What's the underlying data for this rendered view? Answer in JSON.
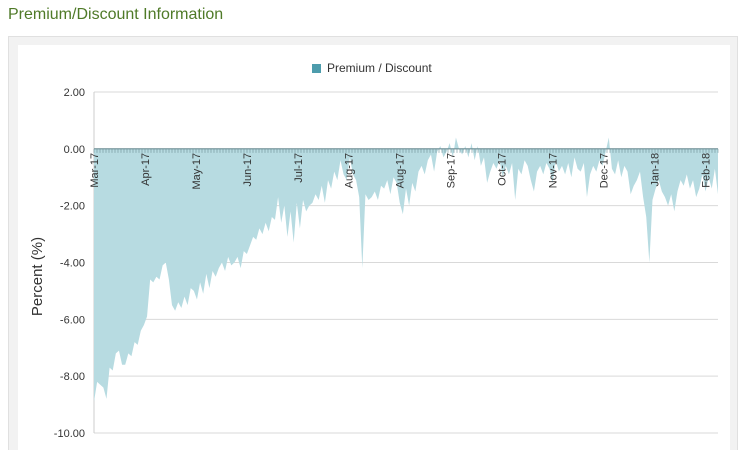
{
  "page": {
    "title": "Premium/Discount Information"
  },
  "colors": {
    "title": "#4f7a28",
    "area_fill": "#b7dbe1",
    "legend_swatch": "#4d9cac",
    "grid": "#d9d9d9",
    "zero_line": "#6e8f96"
  },
  "chart_data": {
    "type": "area",
    "title": "",
    "xlabel": "",
    "ylabel": "Percent (%)",
    "ylim": [
      -10,
      2
    ],
    "yticks": [
      "2.00",
      "0.00",
      "-2.00",
      "-4.00",
      "-6.00",
      "-8.00",
      "-10.00"
    ],
    "xticks": [
      "Mar-17",
      "Apr-17",
      "May-17",
      "Jun-17",
      "Jul-17",
      "Aug-17",
      "Aug-17",
      "Sep-17",
      "Oct-17",
      "Nov-17",
      "Dec-17",
      "Jan-18",
      "Feb-18"
    ],
    "grid": true,
    "legend_position": "top-center",
    "series": [
      {
        "name": "Premium / Discount",
        "points": [
          [
            0,
            -8.9
          ],
          [
            1,
            -8.2
          ],
          [
            2,
            -8.3
          ],
          [
            3,
            -8.4
          ],
          [
            4,
            -8.8
          ],
          [
            5,
            -7.7
          ],
          [
            6,
            -7.8
          ],
          [
            7,
            -7.2
          ],
          [
            8,
            -7.1
          ],
          [
            9,
            -7.6
          ],
          [
            10,
            -7.6
          ],
          [
            11,
            -7.2
          ],
          [
            12,
            -7.3
          ],
          [
            13,
            -6.8
          ],
          [
            14,
            -6.9
          ],
          [
            15,
            -6.4
          ],
          [
            16,
            -6.2
          ],
          [
            17,
            -5.9
          ],
          [
            18,
            -4.6
          ],
          [
            19,
            -4.7
          ],
          [
            20,
            -4.5
          ],
          [
            21,
            -4.6
          ],
          [
            22,
            -4.1
          ],
          [
            23,
            -4.0
          ],
          [
            24,
            -4.6
          ],
          [
            25,
            -5.5
          ],
          [
            26,
            -5.7
          ],
          [
            27,
            -5.4
          ],
          [
            28,
            -5.6
          ],
          [
            29,
            -5.2
          ],
          [
            30,
            -5.5
          ],
          [
            31,
            -4.9
          ],
          [
            32,
            -5.0
          ],
          [
            33,
            -5.3
          ],
          [
            34,
            -4.7
          ],
          [
            35,
            -5.1
          ],
          [
            36,
            -4.4
          ],
          [
            37,
            -4.9
          ],
          [
            38,
            -4.3
          ],
          [
            39,
            -4.5
          ],
          [
            40,
            -4.2
          ],
          [
            41,
            -4.0
          ],
          [
            42,
            -4.3
          ],
          [
            43,
            -3.8
          ],
          [
            44,
            -4.1
          ],
          [
            45,
            -4.0
          ],
          [
            46,
            -3.8
          ],
          [
            47,
            -4.2
          ],
          [
            48,
            -3.6
          ],
          [
            49,
            -3.7
          ],
          [
            50,
            -3.4
          ],
          [
            51,
            -3.1
          ],
          [
            52,
            -3.2
          ],
          [
            53,
            -2.8
          ],
          [
            54,
            -3.0
          ],
          [
            55,
            -2.6
          ],
          [
            56,
            -2.9
          ],
          [
            57,
            -2.4
          ],
          [
            58,
            -2.5
          ],
          [
            59,
            -1.7
          ],
          [
            60,
            -2.6
          ],
          [
            61,
            -2.0
          ],
          [
            62,
            -3.1
          ],
          [
            63,
            -2.2
          ],
          [
            64,
            -3.3
          ],
          [
            65,
            -1.9
          ],
          [
            66,
            -2.8
          ],
          [
            67,
            -1.8
          ],
          [
            68,
            -2.2
          ],
          [
            69,
            -2.0
          ],
          [
            70,
            -1.9
          ],
          [
            71,
            -1.6
          ],
          [
            72,
            -1.8
          ],
          [
            73,
            -1.3
          ],
          [
            74,
            -1.9
          ],
          [
            75,
            -1.1
          ],
          [
            76,
            -1.4
          ],
          [
            77,
            -0.8
          ],
          [
            78,
            -1.1
          ],
          [
            79,
            -0.4
          ],
          [
            80,
            -0.9
          ],
          [
            81,
            -1.1
          ],
          [
            82,
            -0.3
          ],
          [
            83,
            -0.9
          ],
          [
            84,
            -1.1
          ],
          [
            85,
            -1.7
          ],
          [
            86,
            -4.2
          ],
          [
            87,
            -1.6
          ],
          [
            88,
            -1.8
          ],
          [
            89,
            -1.7
          ],
          [
            90,
            -1.5
          ],
          [
            91,
            -1.8
          ],
          [
            92,
            -1.3
          ],
          [
            93,
            -1.4
          ],
          [
            94,
            -1.1
          ],
          [
            95,
            -1.6
          ],
          [
            96,
            -1.0
          ],
          [
            97,
            -1.2
          ],
          [
            98,
            -1.9
          ],
          [
            99,
            -2.3
          ],
          [
            100,
            -1.4
          ],
          [
            101,
            -2.0
          ],
          [
            102,
            -1.2
          ],
          [
            103,
            -1.5
          ],
          [
            104,
            -0.8
          ],
          [
            105,
            -0.6
          ],
          [
            106,
            -0.9
          ],
          [
            107,
            -0.4
          ],
          [
            108,
            -0.2
          ],
          [
            109,
            -0.8
          ],
          [
            110,
            -0.1
          ],
          [
            111,
            0.1
          ],
          [
            112,
            -0.3
          ],
          [
            113,
            -0.1
          ],
          [
            114,
            0.2
          ],
          [
            115,
            -0.3
          ],
          [
            116,
            0.4
          ],
          [
            117,
            0.0
          ],
          [
            118,
            -0.2
          ],
          [
            119,
            0.1
          ],
          [
            120,
            -0.3
          ],
          [
            121,
            0.2
          ],
          [
            122,
            -0.4
          ],
          [
            123,
            0.1
          ],
          [
            124,
            -0.6
          ],
          [
            125,
            -0.3
          ],
          [
            126,
            -1.2
          ],
          [
            127,
            -0.8
          ],
          [
            128,
            -0.5
          ],
          [
            129,
            -0.7
          ],
          [
            130,
            -0.4
          ],
          [
            131,
            -1.0
          ],
          [
            132,
            -0.6
          ],
          [
            133,
            -0.9
          ],
          [
            134,
            -0.5
          ],
          [
            135,
            -1.8
          ],
          [
            136,
            -0.7
          ],
          [
            137,
            -0.9
          ],
          [
            138,
            -0.4
          ],
          [
            139,
            -0.6
          ],
          [
            140,
            -1.1
          ],
          [
            141,
            -1.5
          ],
          [
            142,
            -0.8
          ],
          [
            143,
            -0.6
          ],
          [
            144,
            -0.9
          ],
          [
            145,
            -0.5
          ],
          [
            146,
            -0.7
          ],
          [
            147,
            -1.2
          ],
          [
            148,
            -0.4
          ],
          [
            149,
            -0.8
          ],
          [
            150,
            -0.6
          ],
          [
            151,
            -0.9
          ],
          [
            152,
            -0.5
          ],
          [
            153,
            -1.0
          ],
          [
            154,
            -0.3
          ],
          [
            155,
            -0.7
          ],
          [
            156,
            -0.8
          ],
          [
            157,
            -0.5
          ],
          [
            158,
            -1.7
          ],
          [
            159,
            -0.9
          ],
          [
            160,
            -0.6
          ],
          [
            161,
            -0.8
          ],
          [
            162,
            -0.4
          ],
          [
            163,
            -0.6
          ],
          [
            164,
            -0.1
          ],
          [
            165,
            0.4
          ],
          [
            166,
            -0.7
          ],
          [
            167,
            -0.9
          ],
          [
            168,
            -0.4
          ],
          [
            169,
            -1.0
          ],
          [
            170,
            -0.6
          ],
          [
            171,
            -0.8
          ],
          [
            172,
            -1.6
          ],
          [
            173,
            -1.3
          ],
          [
            174,
            -1.1
          ],
          [
            175,
            -0.8
          ],
          [
            176,
            -1.7
          ],
          [
            177,
            -2.4
          ],
          [
            178,
            -4.0
          ],
          [
            179,
            -1.8
          ],
          [
            180,
            -1.4
          ],
          [
            181,
            -1.1
          ],
          [
            182,
            -1.5
          ],
          [
            183,
            -1.7
          ],
          [
            184,
            -2.0
          ],
          [
            185,
            -1.6
          ],
          [
            186,
            -2.2
          ],
          [
            187,
            -1.5
          ],
          [
            188,
            -1.1
          ],
          [
            189,
            -1.3
          ],
          [
            190,
            -0.9
          ],
          [
            191,
            -1.4
          ],
          [
            192,
            -1.1
          ],
          [
            193,
            -1.7
          ],
          [
            194,
            -1.4
          ],
          [
            195,
            -0.9
          ],
          [
            196,
            -1.5
          ],
          [
            197,
            -1.0
          ],
          [
            198,
            -1.4
          ],
          [
            199,
            -0.7
          ],
          [
            200,
            -1.6
          ]
        ]
      }
    ]
  }
}
